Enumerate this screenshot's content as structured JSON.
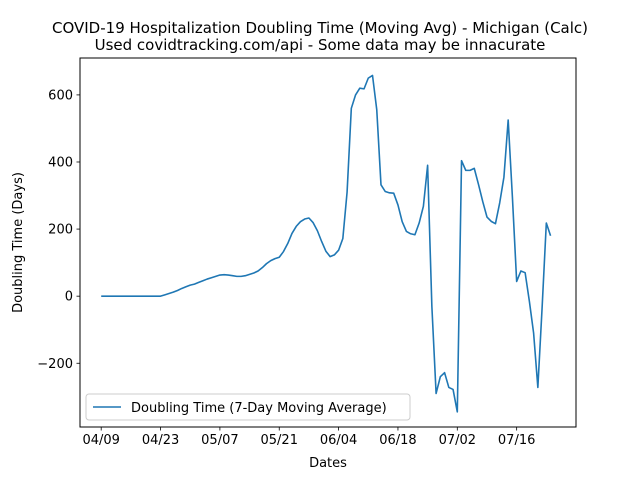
{
  "chart_data": {
    "type": "line",
    "title": "COVID-19 Hospitalization Doubling Time (Moving Avg) - Michigan (Calc)",
    "subtitle": "Used covidtracking.com/api - Some data may be innacurate",
    "xlabel": "Dates",
    "ylabel": "Doubling Time (Days)",
    "x_ticks": [
      "04/09",
      "04/23",
      "05/07",
      "05/21",
      "06/04",
      "06/18",
      "07/02",
      "07/16"
    ],
    "y_ticks": [
      -200,
      0,
      200,
      400,
      600
    ],
    "ylim": [
      -390,
      710
    ],
    "xlim": [
      "2020-04-04",
      "2020-07-30"
    ],
    "grid": false,
    "legend_position": "lower-left",
    "series": [
      {
        "name": "Doubling Time (7-Day Moving Average)",
        "color": "#1f77b4",
        "points": [
          [
            "2020-04-09",
            0
          ],
          [
            "2020-04-10",
            0
          ],
          [
            "2020-04-11",
            0
          ],
          [
            "2020-04-12",
            0
          ],
          [
            "2020-04-13",
            0
          ],
          [
            "2020-04-14",
            0
          ],
          [
            "2020-04-15",
            0
          ],
          [
            "2020-04-16",
            0
          ],
          [
            "2020-04-17",
            0
          ],
          [
            "2020-04-18",
            0
          ],
          [
            "2020-04-19",
            0
          ],
          [
            "2020-04-20",
            0
          ],
          [
            "2020-04-21",
            0
          ],
          [
            "2020-04-22",
            0
          ],
          [
            "2020-04-23",
            0
          ],
          [
            "2020-04-24",
            4
          ],
          [
            "2020-04-25",
            8
          ],
          [
            "2020-04-26",
            12
          ],
          [
            "2020-04-27",
            17
          ],
          [
            "2020-04-28",
            23
          ],
          [
            "2020-04-29",
            28
          ],
          [
            "2020-04-30",
            33
          ],
          [
            "2020-05-01",
            36
          ],
          [
            "2020-05-02",
            41
          ],
          [
            "2020-05-03",
            46
          ],
          [
            "2020-05-04",
            51
          ],
          [
            "2020-05-05",
            55
          ],
          [
            "2020-05-06",
            59
          ],
          [
            "2020-05-07",
            63
          ],
          [
            "2020-05-08",
            64
          ],
          [
            "2020-05-09",
            63
          ],
          [
            "2020-05-10",
            61
          ],
          [
            "2020-05-11",
            59
          ],
          [
            "2020-05-12",
            59
          ],
          [
            "2020-05-13",
            61
          ],
          [
            "2020-05-14",
            65
          ],
          [
            "2020-05-15",
            69
          ],
          [
            "2020-05-16",
            75
          ],
          [
            "2020-05-17",
            85
          ],
          [
            "2020-05-18",
            97
          ],
          [
            "2020-05-19",
            106
          ],
          [
            "2020-05-20",
            112
          ],
          [
            "2020-05-21",
            116
          ],
          [
            "2020-05-22",
            133
          ],
          [
            "2020-05-23",
            157
          ],
          [
            "2020-05-24",
            187
          ],
          [
            "2020-05-25",
            208
          ],
          [
            "2020-05-26",
            222
          ],
          [
            "2020-05-27",
            230
          ],
          [
            "2020-05-28",
            233
          ],
          [
            "2020-05-29",
            219
          ],
          [
            "2020-05-30",
            195
          ],
          [
            "2020-05-31",
            163
          ],
          [
            "2020-06-01",
            134
          ],
          [
            "2020-06-02",
            118
          ],
          [
            "2020-06-03",
            123
          ],
          [
            "2020-06-04",
            137
          ],
          [
            "2020-06-05",
            172
          ],
          [
            "2020-06-06",
            310
          ],
          [
            "2020-06-07",
            560
          ],
          [
            "2020-06-08",
            600
          ],
          [
            "2020-06-09",
            620
          ],
          [
            "2020-06-10",
            618
          ],
          [
            "2020-06-11",
            650
          ],
          [
            "2020-06-12",
            658
          ],
          [
            "2020-06-13",
            556
          ],
          [
            "2020-06-14",
            332
          ],
          [
            "2020-06-15",
            312
          ],
          [
            "2020-06-16",
            308
          ],
          [
            "2020-06-17",
            307
          ],
          [
            "2020-06-18",
            272
          ],
          [
            "2020-06-19",
            222
          ],
          [
            "2020-06-20",
            193
          ],
          [
            "2020-06-21",
            186
          ],
          [
            "2020-06-22",
            183
          ],
          [
            "2020-06-23",
            218
          ],
          [
            "2020-06-24",
            268
          ],
          [
            "2020-06-25",
            390
          ],
          [
            "2020-06-26",
            -30
          ],
          [
            "2020-06-27",
            -290
          ],
          [
            "2020-06-28",
            -240
          ],
          [
            "2020-06-29",
            -228
          ],
          [
            "2020-06-30",
            -272
          ],
          [
            "2020-07-01",
            -278
          ],
          [
            "2020-07-02",
            -345
          ],
          [
            "2020-07-03",
            404
          ],
          [
            "2020-07-04",
            375
          ],
          [
            "2020-07-05",
            375
          ],
          [
            "2020-07-06",
            381
          ],
          [
            "2020-07-07",
            333
          ],
          [
            "2020-07-08",
            282
          ],
          [
            "2020-07-09",
            236
          ],
          [
            "2020-07-10",
            223
          ],
          [
            "2020-07-11",
            216
          ],
          [
            "2020-07-12",
            278
          ],
          [
            "2020-07-13",
            355
          ],
          [
            "2020-07-14",
            525
          ],
          [
            "2020-07-15",
            295
          ],
          [
            "2020-07-16",
            44
          ],
          [
            "2020-07-17",
            75
          ],
          [
            "2020-07-18",
            70
          ],
          [
            "2020-07-19",
            -15
          ],
          [
            "2020-07-20",
            -110
          ],
          [
            "2020-07-21",
            -272
          ],
          [
            "2020-07-22",
            -35
          ],
          [
            "2020-07-23",
            218
          ],
          [
            "2020-07-24",
            180
          ]
        ]
      }
    ]
  }
}
